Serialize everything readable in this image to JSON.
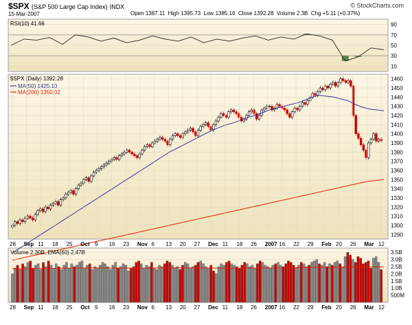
{
  "header": {
    "symbol": "$SPX",
    "name": "(S&P 500 Large Cap Index)",
    "exchange": "INDX",
    "date": "15-Mar-2007",
    "open_label": "Open",
    "open": "1387.11",
    "high_label": "High",
    "high": "1395.73",
    "low_label": "Low",
    "low": "1385.16",
    "close_label": "Close",
    "close": "1392.28",
    "volume_label": "Volume",
    "volume": "2.3B",
    "chg_label": "Chg",
    "chg": "+5.11 (+0.37%)",
    "credit": "© StockCharts.com"
  },
  "colors": {
    "up": "#000000",
    "down": "#cc0000",
    "ma50": "#333399",
    "ma200": "#dd2200",
    "panel_bg_top": "#fbf6e6",
    "panel_bg_bottom": "#efe3bd",
    "rsi_fill": "#3a6b2a"
  },
  "chart_data": [
    {
      "type": "line",
      "title": "RSI(10) 41.66",
      "ylim": [
        0,
        100
      ],
      "yticks": [
        "90",
        "70",
        "50",
        "30",
        "10"
      ],
      "overbought": 70,
      "oversold": 30,
      "x": [
        "Aug 28",
        "Sep 4",
        "Sep 11",
        "Sep 18",
        "Sep 25",
        "Oct 2",
        "Oct 9",
        "Oct 16",
        "Oct 23",
        "Oct 30",
        "Nov 6",
        "Nov 13",
        "Nov 20",
        "Nov 27",
        "Dec 4",
        "Dec 11",
        "Dec 18",
        "Dec 26",
        "Jan 2",
        "Jan 9",
        "Jan 16",
        "Jan 22",
        "Jan 29",
        "Feb 5",
        "Feb 12",
        "Feb 20",
        "Feb 26",
        "Mar 5",
        "Mar 12",
        "Mar 15"
      ],
      "values": [
        50,
        62,
        60,
        65,
        52,
        70,
        66,
        58,
        64,
        55,
        60,
        68,
        62,
        58,
        66,
        55,
        62,
        58,
        64,
        68,
        60,
        66,
        62,
        72,
        68,
        60,
        20,
        28,
        45,
        41.66
      ]
    },
    {
      "type": "candlestick",
      "title": "$SPX (Daily) 1392.28",
      "legend": [
        "MA(50) 1425.10",
        "MA(200) 1350.02"
      ],
      "ylim": [
        1285,
        1465
      ],
      "yticks": [
        1290,
        1300,
        1310,
        1320,
        1330,
        1340,
        1350,
        1360,
        1370,
        1380,
        1390,
        1400,
        1410,
        1420,
        1430,
        1440,
        1450,
        1460
      ],
      "x_labels": [
        "28",
        "Sep",
        "11",
        "18",
        "25",
        "Oct",
        "9",
        "16",
        "23",
        "Nov",
        "6",
        "13",
        "20",
        "27",
        "Dec",
        "11",
        "18",
        "26",
        "2007",
        "16",
        "22",
        "29",
        "Feb",
        "20",
        "26",
        "Mar",
        "12"
      ],
      "close": [
        1300,
        1304,
        1302,
        1306,
        1304,
        1308,
        1310,
        1308,
        1306,
        1312,
        1316,
        1318,
        1315,
        1320,
        1318,
        1322,
        1324,
        1326,
        1322,
        1328,
        1330,
        1334,
        1336,
        1338,
        1334,
        1340,
        1344,
        1346,
        1350,
        1352,
        1348,
        1354,
        1358,
        1360,
        1362,
        1364,
        1366,
        1368,
        1370,
        1372,
        1374,
        1372,
        1376,
        1378,
        1380,
        1382,
        1380,
        1378,
        1376,
        1374,
        1378,
        1382,
        1386,
        1388,
        1386,
        1390,
        1392,
        1394,
        1396,
        1394,
        1392,
        1388,
        1394,
        1398,
        1400,
        1398,
        1396,
        1400,
        1402,
        1404,
        1406,
        1402,
        1398,
        1404,
        1408,
        1410,
        1412,
        1408,
        1404,
        1410,
        1414,
        1418,
        1422,
        1420,
        1418,
        1424,
        1426,
        1424,
        1422,
        1418,
        1414,
        1416,
        1420,
        1424,
        1426,
        1422,
        1416,
        1420,
        1426,
        1428,
        1430,
        1430,
        1426,
        1428,
        1432,
        1430,
        1428,
        1426,
        1422,
        1418,
        1424,
        1428,
        1426,
        1430,
        1434,
        1432,
        1436,
        1440,
        1444,
        1442,
        1446,
        1450,
        1448,
        1452,
        1450,
        1454,
        1456,
        1452,
        1456,
        1460,
        1458,
        1456,
        1458,
        1452,
        1420,
        1400,
        1395,
        1388,
        1382,
        1374,
        1390,
        1394,
        1400,
        1392,
        1394,
        1392.28
      ],
      "ma50": [
        1270,
        1275,
        1280,
        1285,
        1290,
        1295,
        1300,
        1305,
        1310,
        1315,
        1320,
        1325,
        1330,
        1335,
        1340,
        1345,
        1350,
        1355,
        1360,
        1365,
        1370,
        1375,
        1380,
        1384,
        1388,
        1392,
        1396,
        1400,
        1404,
        1407,
        1410,
        1412,
        1415,
        1418,
        1420,
        1423,
        1426,
        1428,
        1430,
        1432,
        1434,
        1437,
        1440,
        1442,
        1441,
        1440,
        1438,
        1436,
        1432,
        1429,
        1427,
        1426,
        1425.1
      ],
      "ma200": [
        1262,
        1264,
        1266,
        1268,
        1270,
        1272,
        1274,
        1276,
        1278,
        1280,
        1282,
        1284,
        1286,
        1288,
        1290,
        1292,
        1294,
        1296,
        1298,
        1300,
        1302,
        1304,
        1306,
        1308,
        1310,
        1312,
        1314,
        1316,
        1318,
        1320,
        1322,
        1324,
        1326,
        1328,
        1330,
        1332,
        1334,
        1336,
        1338,
        1340,
        1342,
        1344,
        1346,
        1348,
        1349,
        1350.02
      ]
    },
    {
      "type": "bar",
      "title": "Volume 2.30B, EMA(60) 2.47B",
      "yticks": [
        "3.5B",
        "3.0B",
        "2.5B",
        "2.0B",
        "1.5B",
        "1.0B",
        "500M"
      ],
      "ylim": [
        0,
        3.8
      ],
      "x_labels": [
        "28",
        "Sep",
        "11",
        "18",
        "25",
        "Oct",
        "9",
        "16",
        "23",
        "Nov",
        "6",
        "13",
        "20",
        "27",
        "Dec",
        "11",
        "18",
        "26",
        "2007",
        "16",
        "22",
        "29",
        "Feb",
        "20",
        "26",
        "Mar",
        "12"
      ],
      "values": [
        2.0,
        2.4,
        2.6,
        2.3,
        2.7,
        2.5,
        2.8,
        2.9,
        2.4,
        2.6,
        2.7,
        2.3,
        2.8,
        2.5,
        2.9,
        2.6,
        2.4,
        2.7,
        2.5,
        2.3,
        2.6,
        2.8,
        2.4,
        2.7,
        2.5,
        2.6,
        2.8,
        2.9,
        2.4,
        2.6,
        2.7,
        2.3,
        2.5,
        2.4,
        2.6,
        2.8,
        2.7,
        2.5,
        2.3,
        2.6,
        2.8,
        2.4,
        2.5,
        2.7,
        2.6,
        2.2,
        2.4,
        2.5,
        2.8,
        2.9,
        2.7,
        2.4,
        2.6,
        2.5,
        2.8,
        2.4,
        2.3,
        2.6,
        2.5,
        2.7,
        2.9,
        2.8,
        2.6,
        2.4,
        2.5,
        2.3,
        2.6,
        2.8,
        2.7,
        2.4,
        2.5,
        2.6,
        2.8,
        2.9,
        2.7,
        2.5,
        2.4,
        2.6,
        2.2,
        2.0,
        2.5,
        2.7,
        2.6,
        2.8,
        2.9,
        2.7,
        2.6,
        2.5,
        2.4,
        2.6,
        2.8,
        2.7,
        2.5,
        2.6,
        2.4,
        2.7,
        2.9,
        2.8,
        2.6,
        2.5,
        2.4,
        2.6,
        2.7,
        2.8,
        2.6,
        2.5,
        2.7,
        2.9,
        2.8,
        2.6,
        2.4,
        2.6,
        2.8,
        2.7,
        2.5,
        2.6,
        2.8,
        2.9,
        3.0,
        2.7,
        2.6,
        2.8,
        2.5,
        2.7,
        2.6,
        2.8,
        2.9,
        2.7,
        2.5,
        3.2,
        3.5,
        3.3,
        3.0,
        2.8,
        3.2,
        3.1,
        2.7,
        2.8,
        2.9,
        2.4,
        3.1,
        3.2,
        2.8,
        2.3
      ],
      "ema60": [
        2.35,
        2.36,
        2.37,
        2.38,
        2.39,
        2.4,
        2.41,
        2.4,
        2.4,
        2.39,
        2.4,
        2.41,
        2.42,
        2.41,
        2.4,
        2.39,
        2.38,
        2.39,
        2.4,
        2.41,
        2.42,
        2.43,
        2.44,
        2.45,
        2.46,
        2.47,
        2.48,
        2.47
      ]
    }
  ]
}
